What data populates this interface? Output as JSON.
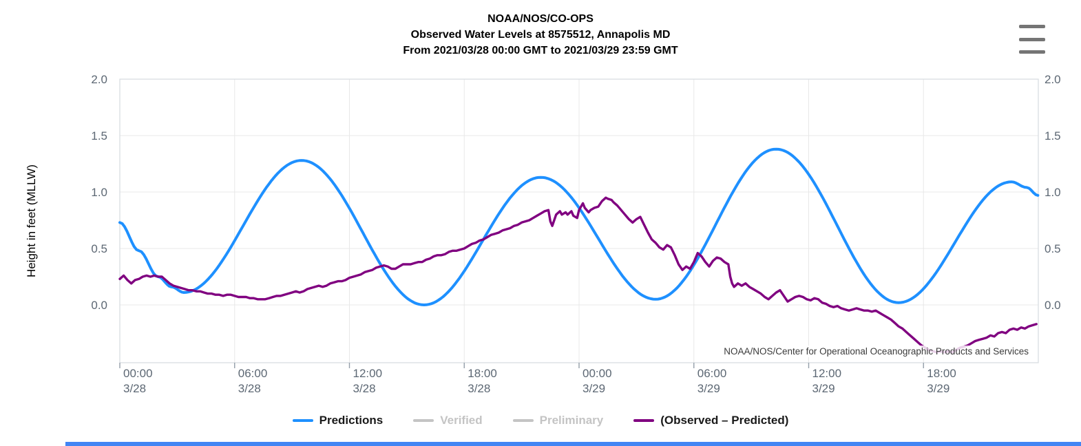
{
  "header": {
    "title_line1": "NOAA/NOS/CO-OPS",
    "title_line2": "Observed Water Levels at 8575512, Annapolis MD",
    "title_line3": "From 2021/03/28 00:00 GMT to 2021/03/29 23:59 GMT"
  },
  "menu": {
    "icon": "hamburger-menu-icon"
  },
  "watermark": {
    "text": "NOAA/NOS/Center for Operational Oceanographic Products and Services"
  },
  "colors": {
    "predictions": "#1e90ff",
    "observed_predicted": "#800080",
    "disabled": "#c4c4c4",
    "axis_text": "#5c6773",
    "grid": "#e8e8e8",
    "plot_border": "#d9dde1",
    "tick": "#939ea9",
    "footer_bar": "#4285f4"
  },
  "legend": [
    {
      "label": "Predictions",
      "color": "#1e90ff",
      "enabled": true
    },
    {
      "label": "Verified",
      "color": "#c4c4c4",
      "enabled": false
    },
    {
      "label": "Preliminary",
      "color": "#c4c4c4",
      "enabled": false
    },
    {
      "label": "(Observed – Predicted)",
      "color": "#800080",
      "enabled": true
    }
  ],
  "chart_data": {
    "type": "line",
    "title": "NOAA/NOS/CO-OPS — Observed Water Levels at 8575512, Annapolis MD — From 2021/03/28 00:00 GMT to 2021/03/29 23:59 GMT",
    "xlabel": "",
    "ylabel": "Height in feet (MLLW)",
    "ylim": [
      -0.51,
      2.0
    ],
    "yticks": [
      0.0,
      0.5,
      1.0,
      1.5,
      2.0
    ],
    "ytick_labels": [
      "0.0",
      "0.5",
      "1.0",
      "1.5",
      "2.0"
    ],
    "x_hours_range": [
      0,
      48
    ],
    "xticks": [
      {
        "hour": 0,
        "time": "00:00",
        "date": "3/28"
      },
      {
        "hour": 6,
        "time": "06:00",
        "date": "3/28"
      },
      {
        "hour": 12,
        "time": "12:00",
        "date": "3/28"
      },
      {
        "hour": 18,
        "time": "18:00",
        "date": "3/28"
      },
      {
        "hour": 24,
        "time": "00:00",
        "date": "3/29"
      },
      {
        "hour": 30,
        "time": "06:00",
        "date": "3/29"
      },
      {
        "hour": 36,
        "time": "12:00",
        "date": "3/29"
      },
      {
        "hour": 42,
        "time": "18:00",
        "date": "3/29"
      }
    ],
    "grid": true,
    "legend_position": "bottom",
    "series": [
      {
        "name": "Predictions",
        "color": "#1e90ff",
        "style": "smooth",
        "units": "feet MLLW, x = hours since 2021/03/28 00:00 GMT",
        "keypoints": [
          [
            0,
            0.73
          ],
          [
            1.0,
            0.48
          ],
          [
            2.0,
            0.25
          ],
          [
            2.7,
            0.16
          ],
          [
            3.35,
            0.11
          ],
          [
            9.5,
            1.28
          ],
          [
            15.9,
            0.0
          ],
          [
            22.0,
            1.13
          ],
          [
            28.0,
            0.05
          ],
          [
            34.3,
            1.38
          ],
          [
            40.7,
            0.02
          ],
          [
            46.6,
            1.09
          ],
          [
            47.4,
            1.04
          ],
          [
            47.98,
            0.97
          ]
        ]
      },
      {
        "name": "Verified",
        "color": "#c4c4c4",
        "style": "line",
        "points": []
      },
      {
        "name": "Preliminary",
        "color": "#c4c4c4",
        "style": "line",
        "points": []
      },
      {
        "name": "(Observed – Predicted)",
        "color": "#800080",
        "style": "line",
        "units": "feet, x = hours since 2021/03/28 00:00 GMT",
        "points": [
          [
            0,
            0.23
          ],
          [
            0.2,
            0.26
          ],
          [
            0.4,
            0.22
          ],
          [
            0.6,
            0.19
          ],
          [
            0.8,
            0.22
          ],
          [
            1,
            0.23
          ],
          [
            1.2,
            0.25
          ],
          [
            1.4,
            0.26
          ],
          [
            1.6,
            0.25
          ],
          [
            1.8,
            0.26
          ],
          [
            2,
            0.25
          ],
          [
            2.2,
            0.25
          ],
          [
            2.4,
            0.22
          ],
          [
            2.6,
            0.19
          ],
          [
            2.8,
            0.17
          ],
          [
            3,
            0.16
          ],
          [
            3.2,
            0.15
          ],
          [
            3.4,
            0.14
          ],
          [
            3.6,
            0.13
          ],
          [
            3.8,
            0.13
          ],
          [
            4,
            0.12
          ],
          [
            4.2,
            0.12
          ],
          [
            4.4,
            0.11
          ],
          [
            4.6,
            0.1
          ],
          [
            4.8,
            0.1
          ],
          [
            5,
            0.09
          ],
          [
            5.2,
            0.09
          ],
          [
            5.4,
            0.08
          ],
          [
            5.6,
            0.09
          ],
          [
            5.8,
            0.09
          ],
          [
            6,
            0.08
          ],
          [
            6.2,
            0.07
          ],
          [
            6.4,
            0.07
          ],
          [
            6.6,
            0.07
          ],
          [
            6.8,
            0.06
          ],
          [
            7,
            0.06
          ],
          [
            7.2,
            0.05
          ],
          [
            7.4,
            0.05
          ],
          [
            7.6,
            0.05
          ],
          [
            7.8,
            0.06
          ],
          [
            8,
            0.07
          ],
          [
            8.2,
            0.08
          ],
          [
            8.4,
            0.08
          ],
          [
            8.6,
            0.09
          ],
          [
            8.8,
            0.1
          ],
          [
            9,
            0.11
          ],
          [
            9.2,
            0.12
          ],
          [
            9.4,
            0.11
          ],
          [
            9.6,
            0.12
          ],
          [
            9.8,
            0.14
          ],
          [
            10,
            0.15
          ],
          [
            10.2,
            0.16
          ],
          [
            10.4,
            0.17
          ],
          [
            10.6,
            0.16
          ],
          [
            10.8,
            0.17
          ],
          [
            11,
            0.19
          ],
          [
            11.2,
            0.2
          ],
          [
            11.4,
            0.21
          ],
          [
            11.6,
            0.21
          ],
          [
            11.8,
            0.22
          ],
          [
            12,
            0.24
          ],
          [
            12.2,
            0.25
          ],
          [
            12.4,
            0.26
          ],
          [
            12.6,
            0.27
          ],
          [
            12.8,
            0.29
          ],
          [
            13,
            0.3
          ],
          [
            13.2,
            0.31
          ],
          [
            13.4,
            0.33
          ],
          [
            13.6,
            0.34
          ],
          [
            13.8,
            0.35
          ],
          [
            14,
            0.34
          ],
          [
            14.2,
            0.32
          ],
          [
            14.4,
            0.32
          ],
          [
            14.6,
            0.34
          ],
          [
            14.8,
            0.36
          ],
          [
            15,
            0.36
          ],
          [
            15.2,
            0.36
          ],
          [
            15.4,
            0.37
          ],
          [
            15.6,
            0.38
          ],
          [
            15.8,
            0.38
          ],
          [
            16,
            0.4
          ],
          [
            16.2,
            0.41
          ],
          [
            16.4,
            0.43
          ],
          [
            16.6,
            0.44
          ],
          [
            16.8,
            0.44
          ],
          [
            17,
            0.45
          ],
          [
            17.2,
            0.47
          ],
          [
            17.4,
            0.48
          ],
          [
            17.6,
            0.48
          ],
          [
            17.8,
            0.49
          ],
          [
            18,
            0.5
          ],
          [
            18.2,
            0.52
          ],
          [
            18.4,
            0.54
          ],
          [
            18.6,
            0.55
          ],
          [
            18.8,
            0.57
          ],
          [
            19,
            0.58
          ],
          [
            19.2,
            0.6
          ],
          [
            19.4,
            0.62
          ],
          [
            19.6,
            0.63
          ],
          [
            19.8,
            0.64
          ],
          [
            20,
            0.66
          ],
          [
            20.2,
            0.67
          ],
          [
            20.4,
            0.68
          ],
          [
            20.6,
            0.7
          ],
          [
            20.8,
            0.71
          ],
          [
            21,
            0.73
          ],
          [
            21.2,
            0.74
          ],
          [
            21.4,
            0.75
          ],
          [
            21.6,
            0.77
          ],
          [
            21.8,
            0.79
          ],
          [
            22,
            0.81
          ],
          [
            22.2,
            0.83
          ],
          [
            22.4,
            0.84
          ],
          [
            22.5,
            0.74
          ],
          [
            22.6,
            0.7
          ],
          [
            22.8,
            0.8
          ],
          [
            23,
            0.83
          ],
          [
            23.1,
            0.8
          ],
          [
            23.3,
            0.82
          ],
          [
            23.4,
            0.8
          ],
          [
            23.6,
            0.83
          ],
          [
            23.7,
            0.79
          ],
          [
            23.9,
            0.77
          ],
          [
            24,
            0.84
          ],
          [
            24.2,
            0.9
          ],
          [
            24.3,
            0.86
          ],
          [
            24.5,
            0.82
          ],
          [
            24.6,
            0.84
          ],
          [
            24.8,
            0.86
          ],
          [
            25,
            0.87
          ],
          [
            25.2,
            0.92
          ],
          [
            25.4,
            0.95
          ],
          [
            25.5,
            0.94
          ],
          [
            25.7,
            0.93
          ],
          [
            25.8,
            0.91
          ],
          [
            26,
            0.88
          ],
          [
            26.2,
            0.84
          ],
          [
            26.4,
            0.8
          ],
          [
            26.6,
            0.76
          ],
          [
            26.8,
            0.73
          ],
          [
            27,
            0.76
          ],
          [
            27.2,
            0.78
          ],
          [
            27.4,
            0.71
          ],
          [
            27.6,
            0.64
          ],
          [
            27.8,
            0.58
          ],
          [
            28,
            0.55
          ],
          [
            28.2,
            0.51
          ],
          [
            28.4,
            0.49
          ],
          [
            28.6,
            0.53
          ],
          [
            28.8,
            0.51
          ],
          [
            29,
            0.44
          ],
          [
            29.2,
            0.36
          ],
          [
            29.4,
            0.31
          ],
          [
            29.6,
            0.34
          ],
          [
            29.8,
            0.32
          ],
          [
            30,
            0.38
          ],
          [
            30.2,
            0.46
          ],
          [
            30.4,
            0.43
          ],
          [
            30.6,
            0.38
          ],
          [
            30.8,
            0.34
          ],
          [
            31,
            0.39
          ],
          [
            31.2,
            0.42
          ],
          [
            31.4,
            0.41
          ],
          [
            31.6,
            0.38
          ],
          [
            31.8,
            0.36
          ],
          [
            31.9,
            0.25
          ],
          [
            32,
            0.19
          ],
          [
            32.1,
            0.16
          ],
          [
            32.3,
            0.19
          ],
          [
            32.5,
            0.17
          ],
          [
            32.7,
            0.19
          ],
          [
            32.9,
            0.16
          ],
          [
            33.1,
            0.14
          ],
          [
            33.3,
            0.12
          ],
          [
            33.5,
            0.1
          ],
          [
            33.7,
            0.07
          ],
          [
            33.9,
            0.05
          ],
          [
            34.1,
            0.08
          ],
          [
            34.3,
            0.11
          ],
          [
            34.5,
            0.13
          ],
          [
            34.7,
            0.08
          ],
          [
            34.9,
            0.03
          ],
          [
            35.1,
            0.05
          ],
          [
            35.3,
            0.07
          ],
          [
            35.5,
            0.08
          ],
          [
            35.7,
            0.07
          ],
          [
            35.9,
            0.05
          ],
          [
            36.1,
            0.04
          ],
          [
            36.3,
            0.06
          ],
          [
            36.5,
            0.05
          ],
          [
            36.7,
            0.02
          ],
          [
            36.9,
            0.01
          ],
          [
            37.1,
            -0.01
          ],
          [
            37.3,
            -0.02
          ],
          [
            37.5,
            -0.01
          ],
          [
            37.7,
            -0.03
          ],
          [
            37.9,
            -0.04
          ],
          [
            38.1,
            -0.05
          ],
          [
            38.3,
            -0.04
          ],
          [
            38.5,
            -0.03
          ],
          [
            38.7,
            -0.04
          ],
          [
            38.9,
            -0.05
          ],
          [
            39.1,
            -0.05
          ],
          [
            39.3,
            -0.06
          ],
          [
            39.5,
            -0.05
          ],
          [
            39.7,
            -0.07
          ],
          [
            39.9,
            -0.09
          ],
          [
            40.1,
            -0.11
          ],
          [
            40.3,
            -0.13
          ],
          [
            40.5,
            -0.16
          ],
          [
            40.7,
            -0.19
          ],
          [
            40.9,
            -0.21
          ],
          [
            41.1,
            -0.24
          ],
          [
            41.3,
            -0.27
          ],
          [
            41.5,
            -0.3
          ],
          [
            41.7,
            -0.33
          ],
          [
            41.9,
            -0.36
          ],
          [
            42.1,
            -0.38
          ],
          [
            42.3,
            -0.4
          ],
          [
            42.5,
            -0.41
          ],
          [
            42.7,
            -0.42
          ],
          [
            42.9,
            -0.41
          ],
          [
            43.1,
            -0.42
          ],
          [
            43.3,
            -0.41
          ],
          [
            43.5,
            -0.42
          ],
          [
            43.7,
            -0.4
          ],
          [
            43.9,
            -0.38
          ],
          [
            44.1,
            -0.37
          ],
          [
            44.3,
            -0.36
          ],
          [
            44.5,
            -0.34
          ],
          [
            44.7,
            -0.32
          ],
          [
            44.9,
            -0.31
          ],
          [
            45.1,
            -0.3
          ],
          [
            45.3,
            -0.29
          ],
          [
            45.5,
            -0.27
          ],
          [
            45.7,
            -0.28
          ],
          [
            45.9,
            -0.25
          ],
          [
            46.1,
            -0.24
          ],
          [
            46.3,
            -0.25
          ],
          [
            46.5,
            -0.22
          ],
          [
            46.7,
            -0.21
          ],
          [
            46.9,
            -0.22
          ],
          [
            47.1,
            -0.2
          ],
          [
            47.3,
            -0.21
          ],
          [
            47.5,
            -0.19
          ],
          [
            47.7,
            -0.18
          ],
          [
            47.9,
            -0.17
          ]
        ]
      }
    ]
  }
}
